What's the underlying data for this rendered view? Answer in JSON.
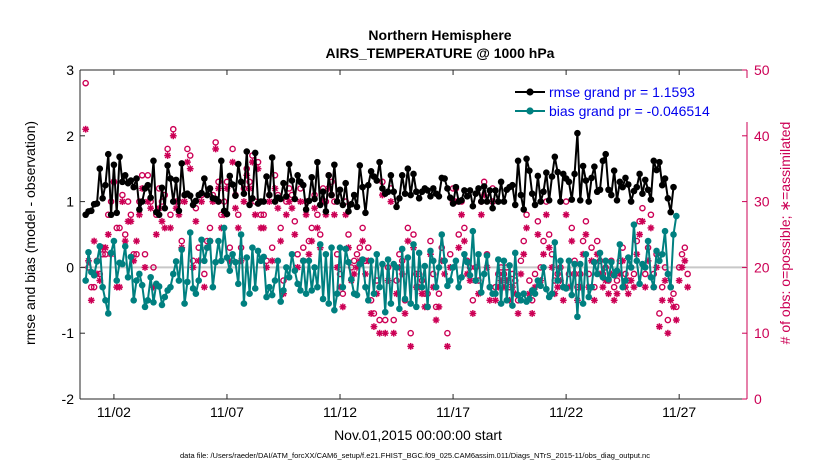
{
  "chart_data": {
    "type": "line",
    "title": [
      "Northern Hemisphere",
      "AIRS_TEMPERATURE @ 1000 hPa"
    ],
    "xlabel": "Nov.01,2015 00:00:00 start",
    "ylabel": "rmse and bias (model - observation)",
    "ylabel_right": "# of obs: o=possible; ∗=assimilated",
    "footnote": "data file: /Users/raeder/DAI/ATM_forcXX/CAM6_setup/f.e21.FHIST_BGC.f09_025.CAM6assim.011/Diags_NTrS_2015-11/obs_diag_output.nc",
    "xlim": [
      0.5,
      30.0
    ],
    "ylim": [
      -2,
      3
    ],
    "ylim_right": [
      0,
      50
    ],
    "x_ticks": [
      2,
      7,
      12,
      17,
      22,
      27
    ],
    "x_tick_labels": [
      "11/02",
      "11/07",
      "11/12",
      "11/17",
      "11/22",
      "11/27"
    ],
    "y_ticks": [
      -2,
      -1,
      0,
      1,
      2,
      3
    ],
    "y_tick_labels": [
      "-2",
      "-1",
      "0",
      "1",
      "2",
      "3"
    ],
    "y_ticks_right": [
      0,
      10,
      20,
      30,
      40,
      50
    ],
    "y_tick_labels_right": [
      "0",
      "10",
      "20",
      "30",
      "40",
      "50"
    ],
    "legend_position": "top-right",
    "series": [
      {
        "name": "rmse grand pr = 1.1593",
        "color": "#000000",
        "marker": "filled-circle",
        "values": [
          0.8,
          0.85,
          0.86,
          0.96,
          0.97,
          1.5,
          1.05,
          1.25,
          1.72,
          0.8,
          1.56,
          0.83,
          1.68,
          1.3,
          1.4,
          1.28,
          1.32,
          1.22,
          1.35,
          0.88,
          1.0,
          1.2,
          1.25,
          1.06,
          1.62,
          0.84,
          0.8,
          1.21,
          0.9,
          1.55,
          1.35,
          1.0,
          1.33,
          0.86,
          1.58,
          1.1,
          1.12,
          1.09,
          0.95,
          1.01,
          1.1,
          1.13,
          1.35,
          1.1,
          1.2,
          1.05,
          1.04,
          1.0,
          1.62,
          0.86,
          0.81,
          1.39,
          1.26,
          1.09,
          1.57,
          1.3,
          1.12,
          1.76,
          0.95,
          1.05,
          1.74,
          0.97,
          1.0,
          1.0,
          1.38,
          1.1,
          1.67,
          1.0,
          1.06,
          1.04,
          1.28,
          1.08,
          1.57,
          1.32,
          1.04,
          1.4,
          1.3,
          1.25,
          0.88,
          1.01,
          1.37,
          1.04,
          1.6,
          0.95,
          1.15,
          0.85,
          1.4,
          1.1,
          1.56,
          1.0,
          1.18,
          0.95,
          1.28,
          0.85,
          0.96,
          1.1,
          0.92,
          1.55,
          1.22,
          0.83,
          1.25,
          1.46,
          1.38,
          1.32,
          1.6,
          1.2,
          1.12,
          1.15,
          1.4,
          1.15,
          0.92,
          1.05,
          1.4,
          1.12,
          1.5,
          1.1,
          1.42,
          1.15,
          1.05,
          1.15,
          1.2,
          1.17,
          1.08,
          1.2,
          1.12,
          1.08,
          1.36,
          1.35,
          1.2,
          1.06,
          0.97,
          1.22,
          1.0,
          1.02,
          1.17,
          1.08,
          1.17,
          0.93,
          1.12,
          1.2,
          1.0,
          1.23,
          1.0,
          1.17,
          0.9,
          1.17,
          1.0,
          1.3,
          1.0,
          1.18,
          1.22,
          1.25,
          0.95,
          1.62,
          1.1,
          0.88,
          1.65,
          1.47,
          1.12,
          0.95,
          1.39,
          1.0,
          1.15,
          1.44,
          1.02,
          1.38,
          1.68,
          1.45,
          1.0,
          1.42,
          1.35,
          1.3,
          1.03,
          1.42,
          2.04,
          1.02,
          1.54,
          1.32,
          1.0,
          1.36,
          1.53,
          1.15,
          1.18,
          1.62,
          1.72,
          1.18,
          1.1,
          1.47,
          1.02,
          1.3,
          1.22,
          1.36,
          1.26,
          1.0,
          1.16,
          1.22,
          1.42,
          1.12,
          1.33,
          1.18,
          1.03,
          1.62,
          1.48,
          1.6,
          1.25,
          1.35,
          1.05,
          0.84,
          1.22
        ]
      },
      {
        "name": "bias grand pr = -0.046514",
        "color": "#008080",
        "marker": "filled-circle",
        "values": [
          -0.2,
          0.23,
          -0.07,
          -0.12,
          0.09,
          0.32,
          -0.3,
          -0.5,
          -0.7,
          0.22,
          0.4,
          -0.2,
          0.07,
          0.05,
          0.32,
          -0.15,
          0.16,
          -0.5,
          -0.2,
          -0.1,
          -0.27,
          -0.6,
          -0.5,
          -0.15,
          -0.53,
          -0.25,
          -0.29,
          -0.57,
          -0.45,
          -0.35,
          -0.3,
          -0.1,
          0.09,
          -0.2,
          0.27,
          -0.55,
          -0.22,
          0.53,
          -0.32,
          -0.4,
          -0.2,
          0.42,
          0.1,
          0.3,
          0.4,
          -0.3,
          0.08,
          0.4,
          0.1,
          0.6,
          0.15,
          -0.05,
          0.2,
          0.08,
          -0.25,
          0.5,
          -0.55,
          0.15,
          -0.4,
          0.3,
          -0.32,
          0.25,
          0.1,
          0.16,
          -0.45,
          -0.3,
          -0.42,
          -0.2,
          0.1,
          -0.52,
          -0.35,
          0.0,
          -0.15,
          0.2,
          -0.05,
          -0.25,
          -0.35,
          0.1,
          -0.4,
          0.1,
          -0.35,
          0.0,
          -0.3,
          0.35,
          -0.48,
          0.2,
          -0.55,
          0.3,
          -0.65,
          -0.4,
          0.3,
          -0.3,
          0.28,
          0.08,
          -0.18,
          -0.4,
          -0.42,
          0.05,
          0.12,
          -0.3,
          -0.5,
          0.1,
          -0.4,
          0.2,
          -0.3,
          0.05,
          -0.68,
          0.12,
          -0.55,
          0.05,
          0.0,
          -0.63,
          0.28,
          -0.48,
          0.15,
          -0.55,
          0.35,
          -0.6,
          0.22,
          -0.3,
          0.02,
          -0.6,
          0.25,
          0.1,
          -0.3,
          0.0,
          0.5,
          0.1,
          -0.28,
          -0.2,
          0.0,
          0.1,
          -0.3,
          -0.15,
          0.2,
          0.08,
          -0.12,
          0.55,
          -0.2,
          0.2,
          -0.38,
          -0.1,
          0.18,
          -0.3,
          -0.4,
          -0.4,
          0.12,
          -0.55,
          0.1,
          -0.5,
          0.03,
          -0.58,
          0.22,
          -0.42,
          -0.5,
          -0.4,
          -0.52,
          -0.48,
          -0.35,
          -0.4,
          -0.2,
          -0.28,
          0.0,
          -0.33,
          -0.45,
          -0.4,
          0.38,
          -0.2,
          0.1,
          -0.3,
          -0.32,
          0.1,
          -0.42,
          0.05,
          -0.75,
          0.05,
          -0.55,
          0.2,
          -0.45,
          -0.3,
          0.08,
          -0.1,
          0.22,
          -0.15,
          0.1,
          -0.18,
          0.08,
          -0.12,
          -0.05,
          0.35,
          -0.3,
          -0.2,
          0.15,
          0.0,
          0.65,
          0.1,
          -0.25,
          0.05,
          0.0,
          0.4,
          -0.15,
          -0.3,
          0.25,
          0.1,
          0.2,
          0.55,
          -0.1,
          -0.3,
          0.5,
          0.78
        ]
      }
    ],
    "obs_possible": [
      48,
      20,
      17,
      17,
      21,
      19,
      22,
      22,
      28,
      30,
      33,
      26,
      26,
      31,
      25,
      30,
      28,
      22,
      22,
      30,
      34,
      22,
      34,
      30,
      20,
      28,
      32,
      30,
      31,
      38,
      28,
      41,
      30,
      30,
      24,
      31,
      38,
      37,
      21,
      29,
      23,
      31,
      19,
      24,
      26,
      31,
      39,
      33,
      28,
      30,
      33,
      23,
      38,
      31,
      28,
      23,
      32,
      35,
      33,
      37,
      30,
      36,
      28,
      28,
      21,
      31,
      23,
      34,
      31,
      26,
      18,
      30,
      32,
      31,
      27,
      22,
      32,
      23,
      30,
      24,
      26,
      31,
      28,
      25,
      32,
      30,
      34,
      33,
      30,
      22,
      19,
      16,
      30,
      25,
      20,
      21,
      22,
      23,
      26,
      21,
      23,
      15,
      13,
      18,
      12,
      33,
      12,
      20,
      32,
      12,
      18,
      22,
      21,
      15,
      26,
      10,
      25,
      19,
      19,
      18,
      16,
      16,
      24,
      19,
      14,
      16,
      23,
      21,
      10,
      22,
      32,
      32,
      25,
      30,
      26,
      21,
      20,
      15,
      20,
      18,
      30,
      33,
      22,
      17,
      32,
      17,
      19,
      20,
      19,
      20,
      17,
      19,
      18,
      15,
      21,
      24,
      28,
      18,
      15,
      19,
      27,
      20,
      24,
      30,
      25,
      22,
      18,
      19,
      20,
      17,
      30,
      19,
      26,
      21,
      17,
      19,
      24,
      27,
      19,
      23,
      17,
      24,
      21,
      19,
      20,
      18,
      21,
      17,
      18,
      21,
      23,
      19,
      18,
      20,
      19,
      24,
      27,
      29,
      19,
      23,
      28,
      19,
      22,
      13,
      17,
      20,
      12,
      17,
      16,
      14,
      20,
      22,
      23,
      19
    ],
    "obs_assimilated": [
      41,
      21,
      15,
      24,
      19,
      18,
      23,
      23,
      25,
      22,
      33,
      17,
      17,
      30,
      24,
      27,
      27,
      21,
      24,
      28,
      32,
      20,
      30,
      29,
      17,
      25,
      29,
      27,
      26,
      37,
      26,
      40,
      29,
      28,
      23,
      30,
      36,
      35,
      20,
      27,
      21,
      30,
      17,
      23,
      24,
      30,
      38,
      32,
      26,
      28,
      32,
      21,
      36,
      29,
      26,
      21,
      30,
      34,
      32,
      36,
      28,
      35,
      26,
      26,
      20,
      30,
      21,
      32,
      29,
      24,
      16,
      28,
      30,
      29,
      25,
      20,
      30,
      21,
      28,
      22,
      24,
      29,
      26,
      23,
      30,
      28,
      32,
      31,
      28,
      20,
      17,
      14,
      28,
      23,
      18,
      19,
      20,
      21,
      24,
      19,
      21,
      13,
      11,
      16,
      10,
      31,
      10,
      18,
      30,
      10,
      16,
      20,
      19,
      13,
      24,
      8,
      23,
      17,
      17,
      16,
      14,
      14,
      22,
      17,
      12,
      14,
      21,
      19,
      8,
      20,
      30,
      30,
      23,
      28,
      24,
      19,
      18,
      13,
      18,
      16,
      28,
      31,
      20,
      15,
      30,
      15,
      17,
      18,
      17,
      18,
      15,
      17,
      16,
      13,
      19,
      22,
      26,
      16,
      13,
      17,
      25,
      18,
      22,
      28,
      23,
      20,
      16,
      17,
      18,
      15,
      28,
      17,
      24,
      19,
      15,
      17,
      22,
      25,
      17,
      21,
      15,
      22,
      19,
      17,
      18,
      16,
      19,
      15,
      16,
      19,
      21,
      17,
      16,
      18,
      17,
      22,
      25,
      27,
      17,
      21,
      26,
      17,
      20,
      11,
      15,
      18,
      10,
      15,
      14,
      12,
      18,
      20,
      21,
      17
    ]
  }
}
